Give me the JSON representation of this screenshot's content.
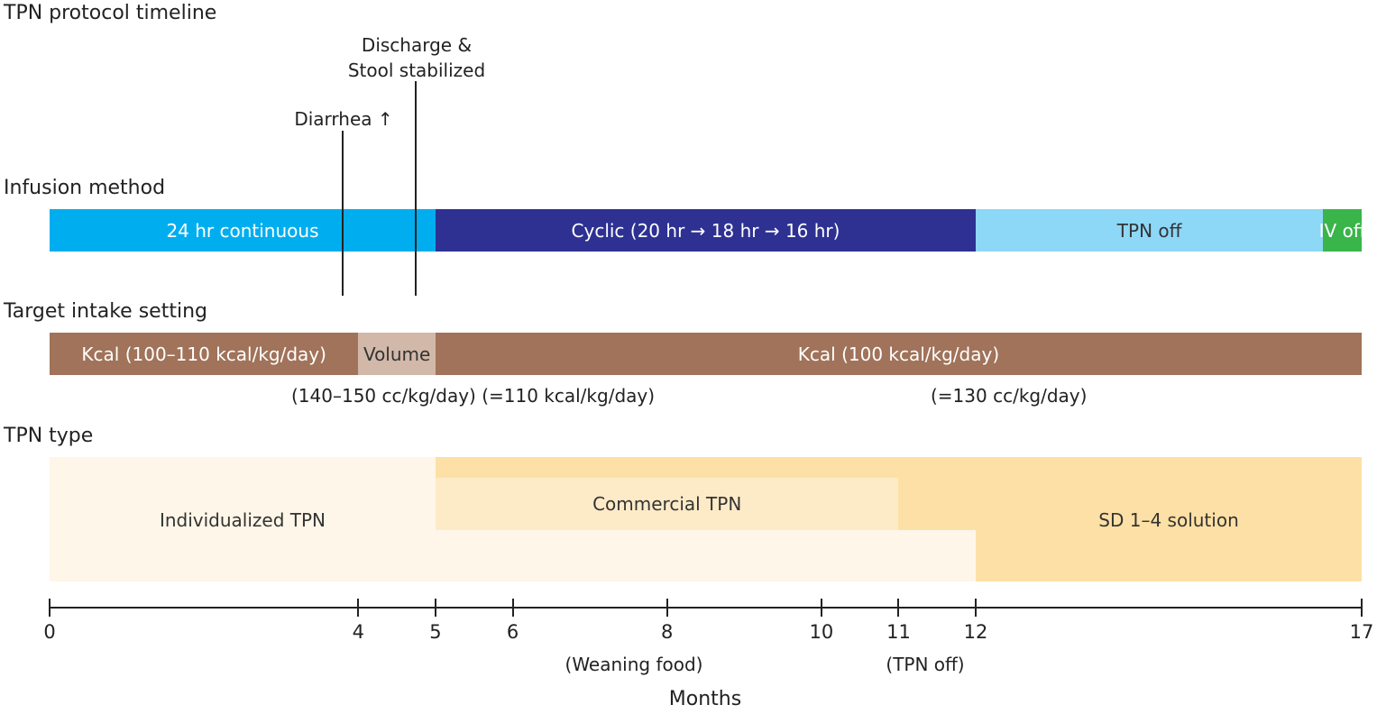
{
  "title": "TPN protocol timeline",
  "events": {
    "diarrhea": "Diarrhea ↑",
    "discharge_line1": "Discharge &",
    "discharge_line2": "Stool stabilized"
  },
  "infusion": {
    "title": "Infusion method",
    "segments": [
      {
        "label": "24 hr continuous",
        "start": 0,
        "end": 5,
        "color": "#00AEEF"
      },
      {
        "label": "Cyclic (20 hr → 18 hr → 16 hr)",
        "start": 5,
        "end": 12,
        "color": "#2E3192"
      },
      {
        "label": "TPN off",
        "start": 12,
        "end": 16.5,
        "color": "#8DD7F7"
      },
      {
        "label": "IV off",
        "start": 16.5,
        "end": 17,
        "color": "#39B54A"
      }
    ]
  },
  "intake": {
    "title": "Target intake setting",
    "segments": [
      {
        "label": "Kcal (100–110 kcal/kg/day)",
        "start": 0,
        "end": 4,
        "color": "#A0735A"
      },
      {
        "label": "Volume",
        "start": 4,
        "end": 5,
        "color": "#D2B8A8"
      },
      {
        "label": "Kcal (100 kcal/kg/day)",
        "start": 5,
        "end": 17,
        "color": "#A0735A"
      }
    ],
    "note_volume": "(140–150 cc/kg/day) (=110 kcal/kg/day)",
    "note_kcal": "(=130 cc/kg/day)"
  },
  "tpn_type": {
    "title": "TPN type",
    "individualized": {
      "label": "Individualized TPN",
      "start": 0,
      "end": 12,
      "color": "#FEF6E8"
    },
    "commercial": {
      "label": "Commercial TPN",
      "start": 5,
      "end": 11,
      "color": "#FDEBC8"
    },
    "sd": {
      "label": "SD 1–4 solution",
      "start": 5,
      "end": 17,
      "color": "#FDE0A5"
    }
  },
  "axis": {
    "label": "Months",
    "ticks": [
      "0",
      "4",
      "5",
      "6",
      "8",
      "10",
      "11",
      "12",
      "17"
    ],
    "notes": {
      "weaning": "(Weaning food)",
      "tpn_off": "(TPN off)"
    }
  }
}
